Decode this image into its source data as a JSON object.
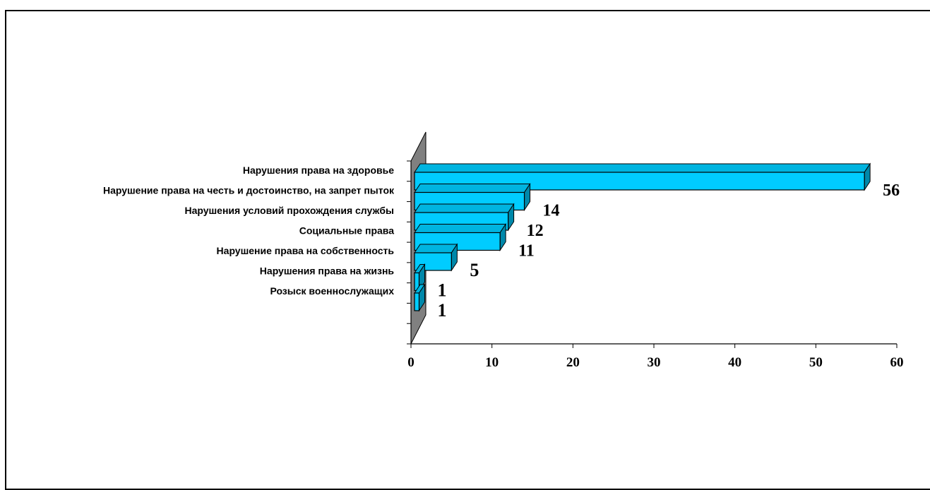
{
  "chart_data": {
    "type": "bar",
    "orientation": "horizontal",
    "style": "3d",
    "categories": [
      "Нарушения права на здоровье",
      "Нарушение права на честь и достоинство, на запрет пыток",
      "Нарушения условий прохождения службы",
      "Социальные права",
      "Нарушение права на собственность",
      "Нарушения права на жизнь",
      "Розыск военнослужащих"
    ],
    "values": [
      56,
      14,
      12,
      11,
      5,
      1,
      1
    ],
    "data_labels": [
      "56",
      "14",
      "12",
      "11",
      "5",
      "1",
      "1"
    ],
    "xticks": [
      "0",
      "10",
      "20",
      "30",
      "40",
      "50",
      "60"
    ],
    "xlim": [
      0,
      60
    ],
    "title": "",
    "xlabel": "",
    "ylabel": "",
    "legend": "none",
    "grid": false,
    "colors": {
      "bar_front": "#00CCFF",
      "bar_top": "#00B4E0",
      "bar_side": "#0088AA",
      "wall": "#808080",
      "axis": "#000000"
    }
  }
}
